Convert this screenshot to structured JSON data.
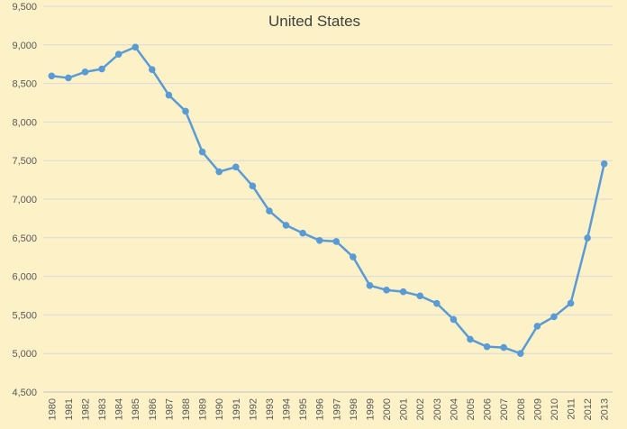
{
  "chart_data": {
    "type": "line",
    "title": "United States",
    "xlabel": "",
    "ylabel": "",
    "ylim": [
      4500,
      9500
    ],
    "ytick_step": 500,
    "yticks": [
      "4,500",
      "5,000",
      "5,500",
      "6,000",
      "6,500",
      "7,000",
      "7,500",
      "8,000",
      "8,500",
      "9,000",
      "9,500"
    ],
    "grid": true,
    "legend": "none",
    "colors": {
      "background": "#fdf1c8",
      "series": "#5b9bd5",
      "grid": "#d9d9d9",
      "text": "#595959"
    },
    "categories": [
      "1980",
      "1981",
      "1982",
      "1983",
      "1984",
      "1985",
      "1986",
      "1987",
      "1988",
      "1989",
      "1990",
      "1991",
      "1992",
      "1993",
      "1994",
      "1995",
      "1996",
      "1997",
      "1998",
      "1999",
      "2000",
      "2001",
      "2002",
      "2003",
      "2004",
      "2005",
      "2006",
      "2007",
      "2008",
      "2009",
      "2010",
      "2011",
      "2012",
      "2013"
    ],
    "series": [
      {
        "values": [
          8597,
          8572,
          8649,
          8688,
          8879,
          8971,
          8680,
          8349,
          8140,
          7613,
          7355,
          7417,
          7171,
          6847,
          6662,
          6560,
          6465,
          6452,
          6252,
          5881,
          5822,
          5801,
          5746,
          5649,
          5441,
          5184,
          5088,
          5077,
          5000,
          5353,
          5476,
          5651,
          6497,
          7459
        ]
      }
    ]
  }
}
